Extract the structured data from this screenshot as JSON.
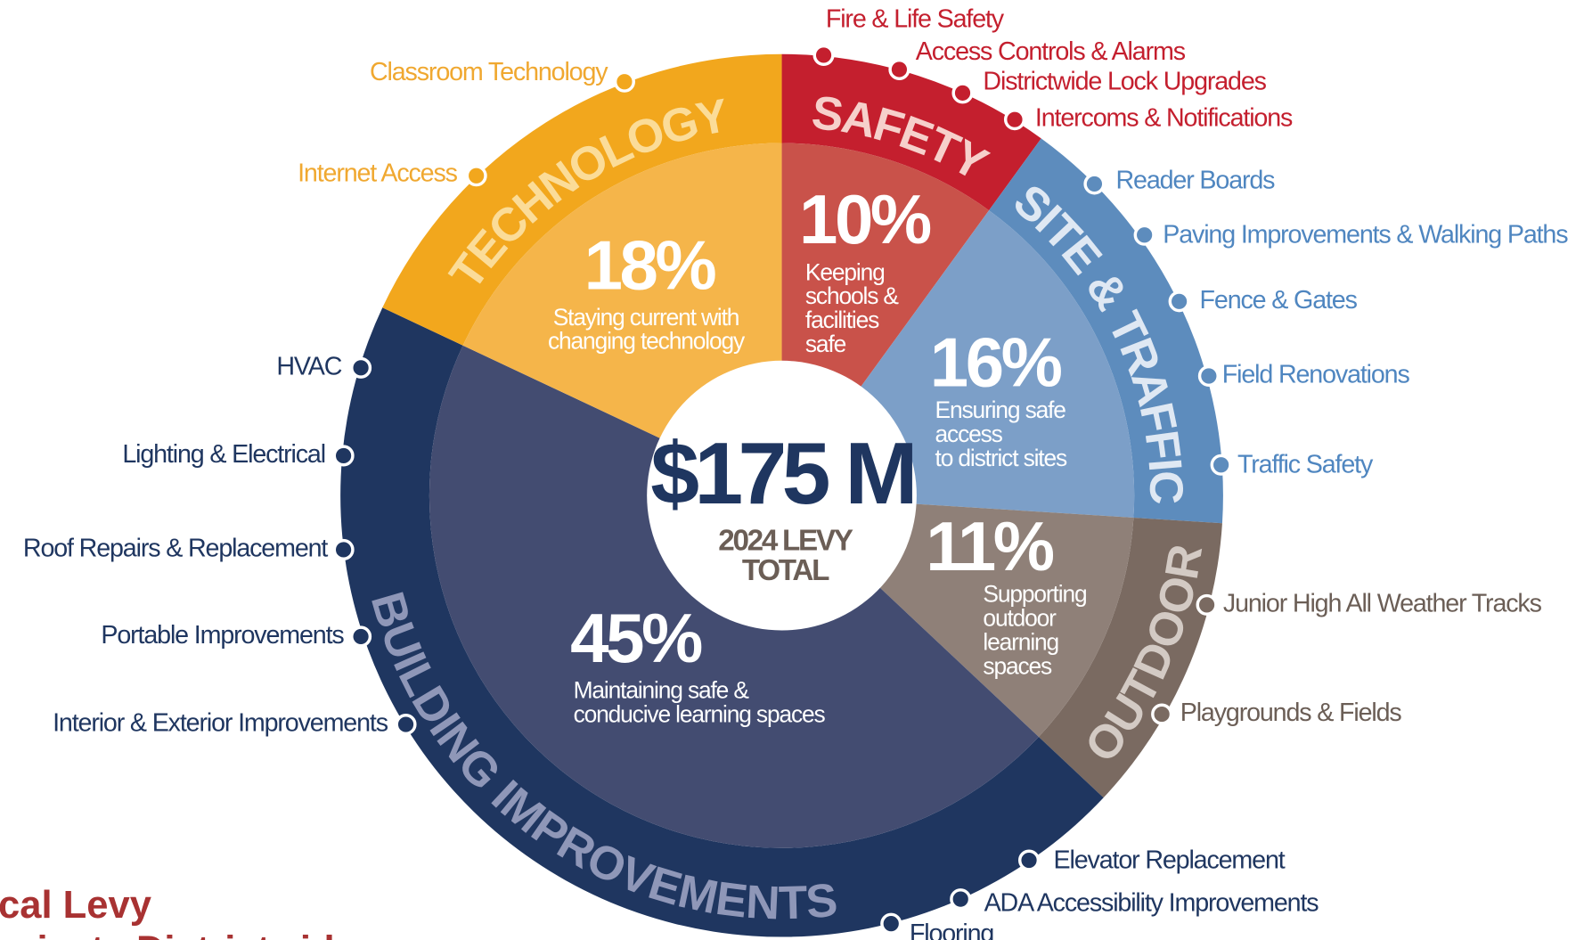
{
  "chart_data": {
    "type": "pie",
    "title_lines": [
      "cal Levy",
      "rojects Districtwide"
    ],
    "center_value": "$175 M",
    "center_label": [
      "2024 LEVY",
      "TOTAL"
    ],
    "categories": [
      "SAFETY",
      "SITE & TRAFFIC",
      "OUTDOOR",
      "BUILDING IMPROVEMENTS",
      "TECHNOLOGY"
    ],
    "values": [
      10,
      16,
      11,
      45,
      18
    ],
    "value_labels": [
      "10%",
      "16%",
      "11%",
      "45%",
      "18%"
    ],
    "colors": [
      "#c41f2e",
      "#5d8cbd",
      "#7a6a61",
      "#1f3660",
      "#f2a71d"
    ],
    "inner_colors": [
      "#c9524a",
      "#7c9fc8",
      "#8f8078",
      "#434c71",
      "#f5b54a"
    ],
    "descriptions": [
      [
        "Keeping",
        "schools &",
        "facilities",
        "safe"
      ],
      [
        "Ensuring safe",
        "access",
        "to district sites"
      ],
      [
        "Supporting",
        "outdoor",
        "learning",
        "spaces"
      ],
      [
        "Maintaining safe &",
        "conducive learning spaces"
      ],
      [
        "Staying current with",
        "changing technology"
      ]
    ],
    "items": [
      [
        "Fire & Life Safety",
        "Access Controls & Alarms",
        "Districtwide Lock Upgrades",
        "Intercoms & Notifications"
      ],
      [
        "Reader Boards",
        "Paving Improvements & Walking Paths",
        "Fence & Gates",
        "Field Renovations",
        "Traffic Safety"
      ],
      [
        "Junior High All Weather Tracks",
        "Playgrounds & Fields"
      ],
      [
        "HVAC",
        "Lighting & Electrical",
        "Roof Repairs & Replacement",
        "Portable Improvements",
        "Interior & Exterior Improvements",
        "Elevator Replacement",
        "ADA Accessibility Improvements",
        "Flooring"
      ],
      [
        "Classroom Technology",
        "Internet Access"
      ]
    ]
  }
}
